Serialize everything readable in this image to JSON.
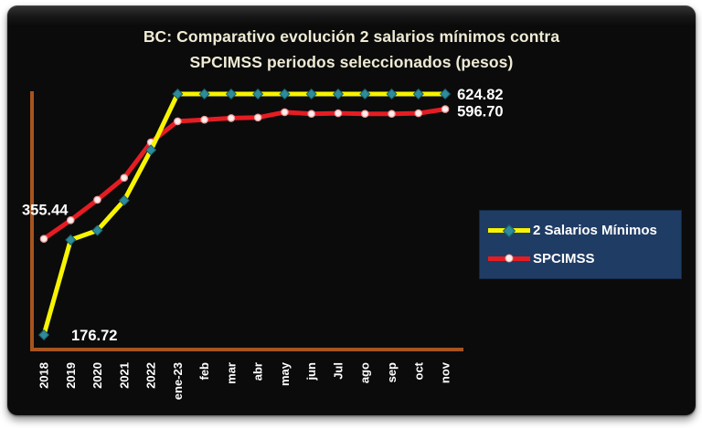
{
  "window": {
    "frame_background": "#0b0b0b",
    "page_background": "#ffffff"
  },
  "chart_data": {
    "type": "line",
    "title": "BC: Comparativo evolución 2 salarios mínimos contra SPCIMSS periodos seleccionados (pesos)",
    "title_lines": [
      "BC: Comparativo evolución 2 salarios mínimos contra",
      "SPCIMSS periodos seleccionados (pesos)"
    ],
    "title_color": "#efebd5",
    "categories": [
      "2018",
      "2019",
      "2020",
      "2021",
      "2022",
      "ene-23",
      "feb",
      "mar",
      "abr",
      "may",
      "jun",
      "Jul",
      "ago",
      "sep",
      "oct",
      "nov"
    ],
    "x_tick_color": "#ffffff",
    "x_tick_rotation": -90,
    "axis_color": "#a8541e",
    "grid": false,
    "ylim": [
      150,
      680
    ],
    "legend_position": "middle-right",
    "series": [
      {
        "name": "2 Salarios Mínimos",
        "line_color": "#f8f400",
        "marker": "diamond",
        "marker_fill": "#2f8a99",
        "marker_edge": "#17606e",
        "values": [
          176.72,
          353.44,
          371.12,
          426.78,
          520.68,
          624.82,
          624.82,
          624.82,
          624.82,
          624.82,
          624.82,
          624.82,
          624.82,
          624.82,
          624.82,
          624.82
        ]
      },
      {
        "name": "SPCIMSS",
        "line_color": "#e51d23",
        "marker": "circle",
        "marker_fill": "#fcecec",
        "marker_edge": "#e89b9b",
        "values": [
          355.44,
          390,
          428,
          469,
          535,
          574,
          577,
          580,
          581,
          591,
          588,
          589,
          588,
          588,
          589,
          596.7
        ]
      }
    ],
    "point_labels": [
      {
        "text": "176.72",
        "series": 0,
        "index": 0
      },
      {
        "text": "355.44",
        "series": 1,
        "index": 0
      },
      {
        "text": "624.82",
        "series": 0,
        "index": 15
      },
      {
        "text": "596.70",
        "series": 1,
        "index": 15
      }
    ],
    "data_label_color": "#ffffff"
  },
  "legend": {
    "background": "#1f3c64",
    "items": [
      {
        "label": "2 Salarios Mínimos"
      },
      {
        "label": "SPCIMSS"
      }
    ]
  }
}
